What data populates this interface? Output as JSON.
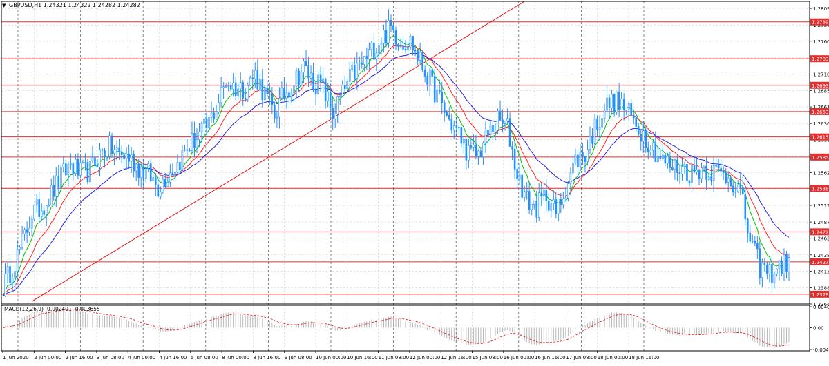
{
  "window": {
    "menu_glyph": "▼",
    "header_text": "GBPUSD,H1  1.24321 1.24322 1.24282 1.24282"
  },
  "macd": {
    "label": "MACD(12,26,9) -0.002401 -0.003655",
    "ticks": [
      {
        "value": 0.004079,
        "label": "0.004079"
      },
      {
        "value": 0.0,
        "label": "0.00"
      },
      {
        "value": -0.00424,
        "label": "-0.00424"
      }
    ]
  },
  "chart_data": {
    "type": "candlestick",
    "symbol": "GBPUSD",
    "timeframe": "H1",
    "ylim": [
      1.2364,
      1.282
    ],
    "y_ticks": [
      "1.28095",
      "1.27845",
      "1.27600",
      "1.27350",
      "1.27105",
      "1.26855",
      "1.26610",
      "1.26360",
      "1.26115",
      "1.25870",
      "1.25620",
      "1.25375",
      "1.25125",
      "1.24875",
      "1.24630",
      "1.24380",
      "1.24135",
      "1.23885",
      "1.23640"
    ],
    "x_labels": [
      "1 Jun 2020",
      "2 Jun 00:00",
      "2 Jun 16:00",
      "3 Jun 08:00",
      "4 Jun 00:00",
      "4 Jun 16:00",
      "5 Jun 08:00",
      "8 Jun 00:00",
      "8 Jun 16:00",
      "9 Jun 08:00",
      "10 Jun 00:00",
      "10 Jun 16:00",
      "11 Jun 08:00",
      "12 Jun 00:00",
      "12 Jun 16:00",
      "15 Jun 08:00",
      "16 Jun 00:00",
      "16 Jun 16:00",
      "17 Jun 08:00",
      "18 Jun 00:00",
      "18 Jun 16:00"
    ],
    "horizontal_levels": [
      {
        "value": 1.27891,
        "label": "1.27891"
      },
      {
        "value": 1.27336,
        "label": "1.27336"
      },
      {
        "value": 1.26935,
        "label": "1.26935"
      },
      {
        "value": 1.26539,
        "label": "1.26539"
      },
      {
        "value": 1.26157,
        "label": "1.26157"
      },
      {
        "value": 1.25854,
        "label": "1.25854"
      },
      {
        "value": 1.25382,
        "label": "1.25382"
      },
      {
        "value": 1.24727,
        "label": "1.24727"
      },
      {
        "value": 1.24275,
        "label": "1.24275"
      },
      {
        "value": 1.23787,
        "label": "1.23787"
      }
    ],
    "current_price": {
      "value": 1.24282,
      "label": "1.24282"
    },
    "price_path": [
      [
        0,
        1.239
      ],
      [
        4,
        1.242
      ],
      [
        8,
        1.2455
      ],
      [
        12,
        1.25
      ],
      [
        16,
        1.251
      ],
      [
        20,
        1.253
      ],
      [
        24,
        1.2555
      ],
      [
        28,
        1.2575
      ],
      [
        32,
        1.256
      ],
      [
        36,
        1.2565
      ],
      [
        40,
        1.259
      ],
      [
        44,
        1.26
      ],
      [
        48,
        1.259
      ],
      [
        52,
        1.2585
      ],
      [
        56,
        1.257
      ],
      [
        60,
        1.256
      ],
      [
        64,
        1.254
      ],
      [
        68,
        1.256
      ],
      [
        72,
        1.2575
      ],
      [
        76,
        1.26
      ],
      [
        80,
        1.2615
      ],
      [
        84,
        1.263
      ],
      [
        88,
        1.266
      ],
      [
        92,
        1.27
      ],
      [
        96,
        1.269
      ],
      [
        100,
        1.269
      ],
      [
        104,
        1.271
      ],
      [
        108,
        1.268
      ],
      [
        112,
        1.265
      ],
      [
        116,
        1.268
      ],
      [
        120,
        1.27
      ],
      [
        124,
        1.272
      ],
      [
        128,
        1.27
      ],
      [
        132,
        1.269
      ],
      [
        136,
        1.265
      ],
      [
        140,
        1.268
      ],
      [
        144,
        1.271
      ],
      [
        148,
        1.2725
      ],
      [
        152,
        1.2745
      ],
      [
        156,
        1.2765
      ],
      [
        160,
        1.278
      ],
      [
        164,
        1.276
      ],
      [
        168,
        1.276
      ],
      [
        172,
        1.273
      ],
      [
        176,
        1.27
      ],
      [
        180,
        1.267
      ],
      [
        184,
        1.264
      ],
      [
        188,
        1.262
      ],
      [
        192,
        1.259
      ],
      [
        196,
        1.259
      ],
      [
        200,
        1.262
      ],
      [
        204,
        1.264
      ],
      [
        208,
        1.263
      ],
      [
        212,
        1.256
      ],
      [
        216,
        1.252
      ],
      [
        220,
        1.251
      ],
      [
        224,
        1.253
      ],
      [
        228,
        1.25
      ],
      [
        232,
        1.254
      ],
      [
        236,
        1.258
      ],
      [
        240,
        1.259
      ],
      [
        244,
        1.263
      ],
      [
        248,
        1.266
      ],
      [
        252,
        1.267
      ],
      [
        256,
        1.266
      ],
      [
        260,
        1.264
      ],
      [
        264,
        1.262
      ],
      [
        268,
        1.26
      ],
      [
        272,
        1.258
      ],
      [
        276,
        1.257
      ],
      [
        280,
        1.257
      ],
      [
        284,
        1.256
      ],
      [
        288,
        1.257
      ],
      [
        292,
        1.2565
      ],
      [
        296,
        1.256
      ],
      [
        300,
        1.2555
      ],
      [
        304,
        1.253
      ],
      [
        308,
        1.246
      ],
      [
        312,
        1.242
      ],
      [
        316,
        1.241
      ],
      [
        320,
        1.242
      ],
      [
        324,
        1.2428
      ]
    ],
    "series": [
      {
        "name": "",
        "color": "#1e90ff",
        "type": "candles"
      },
      {
        "name": "",
        "color": "#00c000",
        "type": "ma-fast"
      },
      {
        "name": "",
        "color": "#ff2020",
        "type": "ma-mid"
      },
      {
        "name": "",
        "color": "#2020e0",
        "type": "ma-slow"
      },
      {
        "name": "",
        "color": "#e01010",
        "type": "trendline"
      }
    ],
    "trendline": {
      "from": [
        12,
        1.2368
      ],
      "to": [
        215,
        1.282
      ]
    },
    "macd_range": [
      -0.00424,
      0.004079
    ],
    "grid": true
  }
}
